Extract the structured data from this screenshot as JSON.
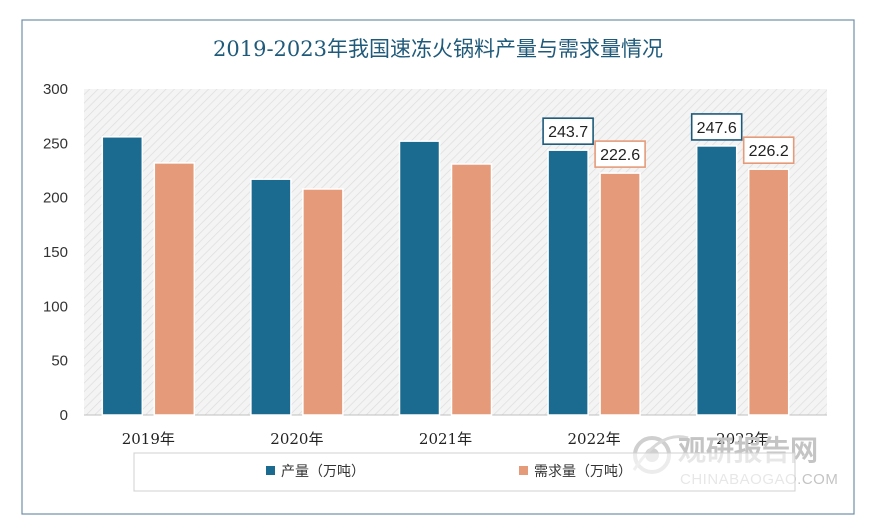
{
  "chart_data": {
    "type": "bar",
    "title": "2019-2023年我国速冻火锅料产量与需求量情况",
    "categories": [
      "2019年",
      "2020年",
      "2021年",
      "2022年",
      "2023年"
    ],
    "series": [
      {
        "name": "产量（万吨）",
        "color": "#1b6a8f",
        "values": [
          256,
          217,
          252,
          243.7,
          247.6
        ],
        "labels": [
          "",
          "",
          "",
          "243.7",
          "247.6"
        ]
      },
      {
        "name": "需求量（万吨）",
        "color": "#e59b7a",
        "values": [
          232,
          208,
          231,
          222.6,
          226.2
        ],
        "labels": [
          "",
          "",
          "",
          "222.6",
          "226.2"
        ]
      }
    ],
    "ylim": [
      0,
      300
    ],
    "yticks": [
      0,
      50,
      100,
      150,
      200,
      250,
      300
    ],
    "xlabel": "",
    "ylabel": "",
    "grid": false,
    "legend": "bottom"
  },
  "watermark": {
    "text_cn": "观研报告网",
    "text_en": "CHINABAOGAO.COM"
  }
}
